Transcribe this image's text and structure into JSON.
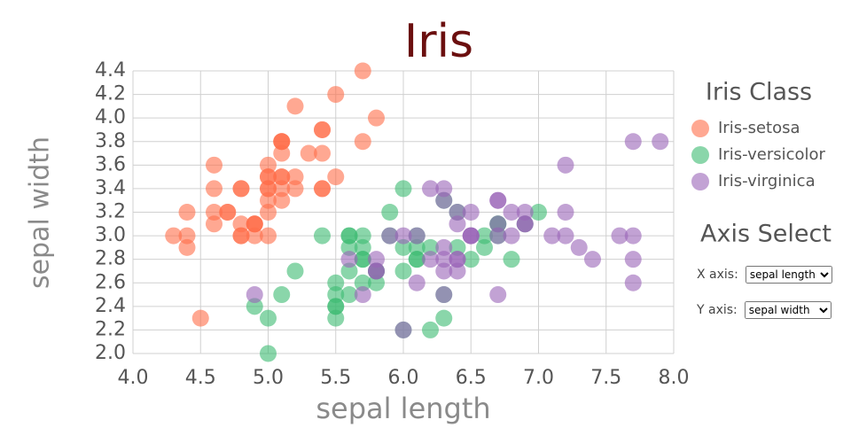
{
  "chart_data": {
    "type": "scatter",
    "title": "Iris",
    "xlabel": "sepal length",
    "ylabel": "sepal width",
    "legend_title": "Iris Class",
    "grid": true,
    "marker_opacity": 0.6,
    "xlim": [
      4.0,
      8.0
    ],
    "xticks": [
      {
        "value": 4,
        "label": "4.0"
      },
      4.5,
      {
        "value": 5,
        "label": "5.0"
      },
      5.5,
      {
        "value": 6,
        "label": "6.0"
      },
      6.5,
      {
        "value": 7,
        "label": "7.0"
      },
      7.5,
      {
        "value": 8,
        "label": "8.0"
      }
    ],
    "ylim": [
      2.0,
      4.4
    ],
    "yticks": [
      {
        "value": 2,
        "label": "2.0"
      },
      2.2,
      2.4,
      2.6,
      2.8,
      {
        "value": 3,
        "label": "3.0"
      },
      3.2,
      3.4,
      3.6,
      3.8,
      {
        "value": 4,
        "label": "4.0"
      },
      4.2,
      4.4
    ],
    "series": [
      {
        "name": "Iris-setosa",
        "color": "#ff6e4a",
        "x": [
          5.1,
          4.9,
          4.7,
          4.6,
          5.0,
          5.4,
          4.6,
          5.0,
          4.4,
          4.9,
          5.4,
          4.8,
          4.8,
          4.3,
          5.8,
          5.7,
          5.4,
          5.1,
          5.7,
          5.1,
          5.4,
          5.1,
          4.6,
          5.1,
          4.8,
          5.0,
          5.0,
          5.2,
          5.2,
          4.7,
          4.8,
          5.4,
          5.2,
          5.5,
          4.9,
          5.0,
          5.5,
          4.9,
          4.4,
          5.1,
          5.0,
          4.5,
          4.4,
          5.0,
          5.1,
          4.8,
          5.1,
          4.6,
          5.3,
          5.0
        ],
        "values": [
          3.5,
          3.0,
          3.2,
          3.1,
          3.6,
          3.9,
          3.4,
          3.4,
          2.9,
          3.1,
          3.7,
          3.4,
          3.0,
          3.0,
          4.0,
          4.4,
          3.9,
          3.5,
          3.8,
          3.8,
          3.4,
          3.7,
          3.6,
          3.3,
          3.4,
          3.0,
          3.4,
          3.5,
          3.4,
          3.2,
          3.1,
          3.4,
          4.1,
          4.2,
          3.1,
          3.2,
          3.5,
          3.1,
          3.0,
          3.4,
          3.5,
          2.3,
          3.2,
          3.5,
          3.8,
          3.0,
          3.8,
          3.2,
          3.7,
          3.3
        ]
      },
      {
        "name": "Iris-versicolor",
        "color": "#3cba72",
        "x": [
          7.0,
          6.4,
          6.9,
          5.5,
          6.5,
          5.7,
          6.3,
          4.9,
          6.6,
          5.2,
          5.0,
          5.9,
          6.0,
          6.1,
          5.6,
          6.7,
          5.6,
          5.8,
          6.2,
          5.6,
          5.9,
          6.1,
          6.3,
          6.1,
          6.4,
          6.6,
          6.8,
          6.7,
          6.0,
          5.7,
          5.5,
          5.5,
          5.8,
          6.0,
          5.4,
          6.0,
          6.7,
          6.3,
          5.6,
          5.5,
          5.5,
          6.1,
          5.8,
          5.0,
          5.6,
          5.7,
          5.7,
          6.2,
          5.1,
          5.7
        ],
        "values": [
          3.2,
          3.2,
          3.1,
          2.3,
          2.8,
          2.8,
          3.3,
          2.4,
          2.9,
          2.7,
          2.0,
          3.0,
          2.2,
          2.9,
          2.9,
          3.1,
          3.0,
          2.7,
          2.2,
          2.5,
          3.2,
          2.8,
          2.5,
          2.8,
          2.9,
          3.0,
          2.8,
          3.0,
          2.9,
          2.6,
          2.4,
          2.4,
          2.7,
          2.7,
          3.0,
          3.4,
          3.1,
          2.3,
          3.0,
          2.5,
          2.6,
          3.0,
          2.6,
          2.3,
          2.7,
          3.0,
          2.9,
          2.9,
          2.5,
          2.8
        ]
      },
      {
        "name": "Iris-virginica",
        "color": "#9a64b8",
        "x": [
          6.3,
          5.8,
          7.1,
          6.3,
          6.5,
          7.6,
          4.9,
          7.3,
          6.7,
          7.2,
          6.5,
          6.4,
          6.8,
          5.7,
          5.8,
          6.4,
          6.5,
          7.7,
          7.7,
          6.0,
          6.9,
          5.6,
          7.7,
          6.3,
          6.7,
          7.2,
          6.2,
          6.1,
          6.4,
          7.2,
          7.4,
          7.9,
          6.4,
          6.3,
          6.1,
          7.7,
          6.3,
          6.4,
          6.0,
          6.9,
          6.7,
          6.9,
          5.8,
          6.8,
          6.7,
          6.7,
          6.3,
          6.5,
          6.2,
          5.9
        ],
        "values": [
          3.3,
          2.7,
          3.0,
          2.9,
          3.0,
          3.0,
          2.5,
          2.9,
          2.5,
          3.6,
          3.2,
          2.7,
          3.0,
          2.5,
          2.8,
          3.2,
          3.0,
          3.8,
          2.6,
          2.2,
          3.2,
          2.8,
          2.8,
          2.7,
          3.3,
          3.2,
          2.8,
          3.0,
          2.8,
          3.0,
          2.8,
          3.8,
          2.8,
          2.8,
          2.6,
          3.0,
          3.4,
          3.1,
          3.0,
          3.1,
          3.1,
          3.1,
          2.7,
          3.2,
          3.3,
          3.0,
          2.5,
          3.0,
          3.4,
          3.0
        ]
      }
    ]
  },
  "controls": {
    "title": "Axis Select",
    "x_axis": {
      "label": "X axis:",
      "value": "sepal length"
    },
    "y_axis": {
      "label": "Y axis:",
      "value": "sepal width"
    }
  }
}
